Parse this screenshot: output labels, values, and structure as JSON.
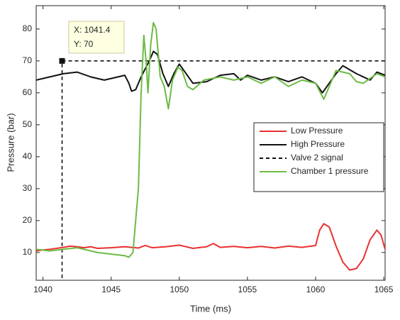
{
  "chart_data": {
    "type": "line",
    "x_label": "Time (ms)",
    "y_label": "Pressure (bar)",
    "xlim": [
      1039.5,
      1065.1
    ],
    "ylim": [
      1.3,
      87.3
    ],
    "xticks": [
      1040,
      1045,
      1050,
      1055,
      1060,
      1065
    ],
    "yticks": [
      10,
      20,
      30,
      40,
      50,
      60,
      70,
      80
    ],
    "legend": "right",
    "series": [
      {
        "name": "Low Pressure",
        "color": "#e8312f",
        "dash": false,
        "x": [
          1039.5,
          1040,
          1040.5,
          1041,
          1041.5,
          1042,
          1042.5,
          1043,
          1043.5,
          1044,
          1045,
          1046,
          1047,
          1047.5,
          1048,
          1049,
          1050,
          1051,
          1052,
          1052.5,
          1053,
          1054,
          1055,
          1056,
          1057,
          1058,
          1059,
          1060,
          1060.3,
          1060.6,
          1061,
          1061.5,
          1062,
          1062.5,
          1063,
          1063.5,
          1064,
          1064.5,
          1064.8,
          1065.1
        ],
        "values": [
          10.5,
          10.8,
          11,
          11.3,
          11.6,
          12,
          11.8,
          11.5,
          11.8,
          11.3,
          11.5,
          11.8,
          11.4,
          12.2,
          11.5,
          11.8,
          12.3,
          11.3,
          11.8,
          12.8,
          11.6,
          11.9,
          11.5,
          11.9,
          11.4,
          12,
          11.6,
          12.2,
          17,
          19,
          18,
          12,
          7,
          4.5,
          5,
          8,
          14,
          17,
          15.5,
          11
        ]
      },
      {
        "name": "High Pressure",
        "color": "#111111",
        "dash": false,
        "x": [
          1039.5,
          1040.5,
          1041.5,
          1042.5,
          1043.5,
          1044.5,
          1045.5,
          1046,
          1046.3,
          1046.5,
          1046.8,
          1047.2,
          1047.8,
          1048.1,
          1048.4,
          1048.8,
          1049.2,
          1049.6,
          1050,
          1050.5,
          1051,
          1052,
          1053,
          1054,
          1054.5,
          1055,
          1056,
          1057,
          1058,
          1059,
          1059.5,
          1060,
          1060.5,
          1061,
          1061.5,
          1062,
          1063,
          1064,
          1064.5,
          1065.1
        ],
        "values": [
          64,
          65,
          66,
          66.5,
          65,
          64,
          65,
          65.5,
          63,
          60.5,
          61,
          65,
          70,
          73,
          72,
          66,
          62,
          66,
          69,
          66,
          63,
          63.5,
          65.5,
          66,
          64,
          65.5,
          64,
          65,
          63.5,
          65,
          64,
          63,
          60,
          63,
          66,
          68.5,
          66,
          64,
          66.5,
          65.5
        ]
      },
      {
        "name": "Valve 2 signal",
        "color": "#111111",
        "dash": true,
        "x": [
          1041.4,
          1041.4,
          1065.1
        ],
        "values": [
          0,
          70,
          70
        ]
      },
      {
        "name": "Chamber 1 pressure",
        "color": "#6cbb45",
        "dash": false,
        "x": [
          1039.5,
          1040.5,
          1041.5,
          1042.5,
          1043,
          1044,
          1045,
          1046,
          1046.3,
          1046.6,
          1047,
          1047.2,
          1047.4,
          1047.6,
          1047.7,
          1047.9,
          1048.1,
          1048.3,
          1048.6,
          1048.9,
          1049.2,
          1049.5,
          1049.9,
          1050.2,
          1050.6,
          1051,
          1051.8,
          1053,
          1054,
          1055,
          1056,
          1057,
          1058,
          1059,
          1060,
          1060.6,
          1061,
          1061.5,
          1062.5,
          1063,
          1063.5,
          1064.5,
          1065.1
        ],
        "values": [
          11,
          10.5,
          11,
          11.5,
          11,
          10,
          9.5,
          9,
          8.5,
          10,
          30,
          60,
          78,
          68,
          60,
          75,
          82,
          80,
          65,
          62,
          55,
          64,
          68,
          67,
          62,
          61,
          64,
          65,
          64,
          65,
          63,
          65,
          62,
          64,
          63,
          58,
          62,
          67,
          66,
          63.5,
          63,
          66,
          65
        ]
      }
    ],
    "datatip": {
      "x": 1041.4,
      "y": 70,
      "x_text": "X: 1041.4",
      "y_text": "Y: 70"
    }
  }
}
